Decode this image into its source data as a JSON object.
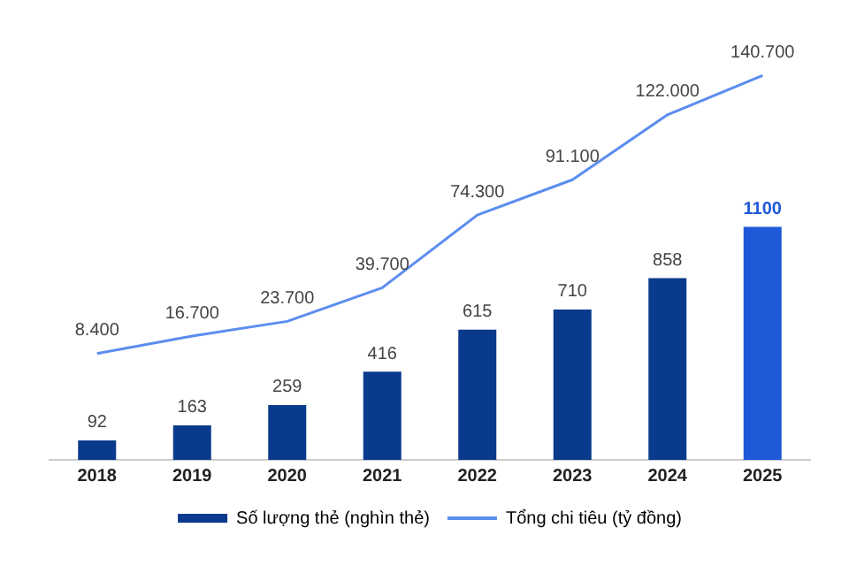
{
  "chart_data": {
    "type": "bar",
    "categories": [
      "2018",
      "2019",
      "2020",
      "2021",
      "2022",
      "2023",
      "2024",
      "2025"
    ],
    "series": [
      {
        "name": "Số lượng thẻ (nghìn thẻ)",
        "color": "#0a3a8c",
        "colors": [
          "#0a3a8c",
          "#0a3a8c",
          "#0a3a8c",
          "#0a3a8c",
          "#0a3a8c",
          "#0a3a8c",
          "#0a3a8c",
          "#1e5ad8"
        ],
        "values": [
          92,
          163,
          259,
          416,
          615,
          710,
          858,
          1100
        ],
        "value_labels": [
          "92",
          "163",
          "259",
          "416",
          "615",
          "710",
          "858",
          "1100"
        ]
      },
      {
        "name": "Tổng chi tiêu (tỷ đồng)",
        "type": "line",
        "axis": "y2",
        "color": "#5b8def",
        "marker": "none",
        "values": [
          8400,
          16700,
          23700,
          39700,
          74300,
          91100,
          122000,
          140700
        ],
        "value_labels": [
          "8.400",
          "16.700",
          "23.700",
          "39.700",
          "74.300",
          "91.100",
          "122.000",
          "140.700"
        ]
      }
    ],
    "legend": "bottom",
    "grid": false,
    "tick_labels": "x"
  }
}
